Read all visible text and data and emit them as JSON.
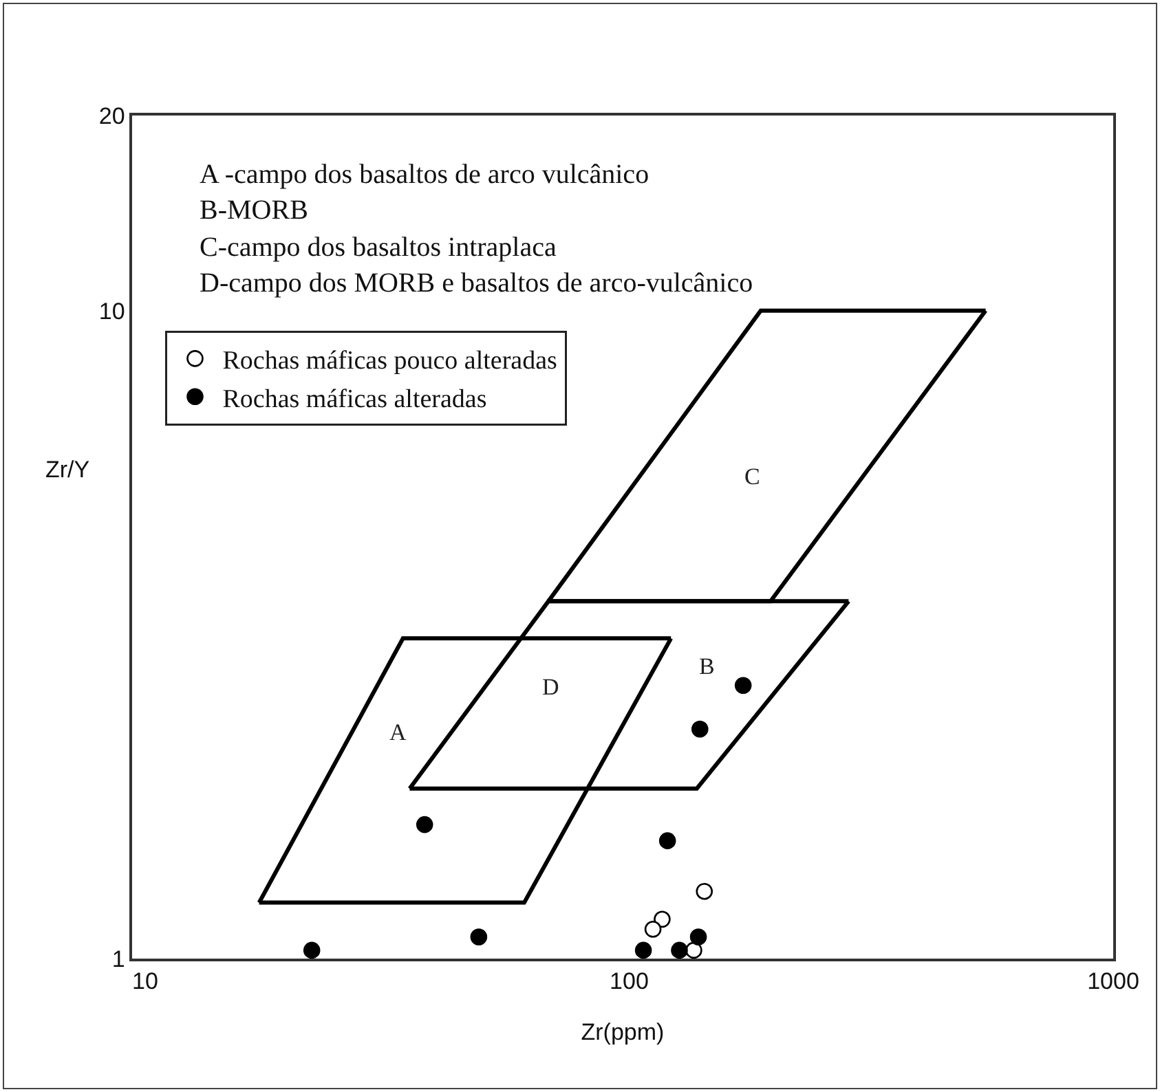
{
  "chart_data": {
    "type": "scatter",
    "xlabel": "Zr(ppm)",
    "ylabel": "Zr/Y",
    "log": "xy",
    "xlim": [
      9.4,
      1000
    ],
    "ylim": [
      1,
      20
    ],
    "xticks": [
      10,
      100,
      1000
    ],
    "yticks": [
      1,
      10,
      20
    ],
    "grid": false,
    "legend": "top left",
    "marker": "circle",
    "series": [
      {
        "type": "line",
        "color": "#000000",
        "line_style": "solid",
        "marker": "none",
        "x": [
          17.2,
          60.7,
          122
        ],
        "values": [
          1.22,
          1.22,
          3.12
        ]
      },
      {
        "type": "line",
        "color": "#000000",
        "line_style": "solid",
        "marker": "none",
        "x": [
          17.2,
          34.1,
          122
        ],
        "values": [
          1.22,
          3.12,
          3.12
        ]
      },
      {
        "type": "line",
        "color": "#000000",
        "line_style": "solid",
        "marker": "none",
        "x": [
          35.2,
          138,
          284
        ],
        "values": [
          1.83,
          1.83,
          3.56
        ]
      },
      {
        "type": "line",
        "color": "#000000",
        "line_style": "solid",
        "marker": "none",
        "x": [
          35.2,
          68.1,
          284
        ],
        "values": [
          1.83,
          3.56,
          3.56
        ]
      },
      {
        "type": "line",
        "color": "#000000",
        "line_style": "solid",
        "marker": "none",
        "x": [
          68.1,
          196,
          545
        ],
        "values": [
          3.56,
          3.56,
          10
        ]
      },
      {
        "type": "line",
        "color": "#000000",
        "line_style": "solid",
        "marker": "none",
        "x": [
          68.1,
          187,
          545
        ],
        "values": [
          3.56,
          10,
          10
        ]
      },
      {
        "name": "Rochas máficas pouco alteradas",
        "color": "#ffffff",
        "x": [
          143,
          117,
          112,
          136
        ],
        "values": [
          1.27,
          1.15,
          1.11,
          1.03
        ]
      },
      {
        "name": "Rochas máficas alteradas",
        "color": "#000000",
        "x": [
          37.8,
          172,
          140,
          120,
          22.1,
          48.9,
          107,
          127,
          139
        ],
        "values": [
          1.61,
          2.64,
          2.26,
          1.52,
          1.03,
          1.08,
          1.03,
          1.03,
          1.08
        ]
      }
    ],
    "annotations": [
      "A -campo dos basaltos de arco vulcânico",
      "B-MORB",
      "C-campo dos basaltos intraplaca",
      "D-campo dos MORB e basaltos de arco-vulcânico",
      "A",
      "B",
      "C",
      "D"
    ]
  }
}
